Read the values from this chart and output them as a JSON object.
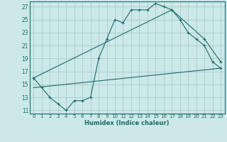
{
  "xlabel": "Humidex (Indice chaleur)",
  "background_color": "#cce8e8",
  "grid_color": "#aacccc",
  "line_color": "#1a6b6b",
  "xlim": [
    -0.5,
    23.5
  ],
  "ylim": [
    10.5,
    27.8
  ],
  "xticks": [
    0,
    1,
    2,
    3,
    4,
    5,
    6,
    7,
    8,
    9,
    10,
    11,
    12,
    13,
    14,
    15,
    16,
    17,
    18,
    19,
    20,
    21,
    22,
    23
  ],
  "yticks": [
    11,
    13,
    15,
    17,
    19,
    21,
    23,
    25,
    27
  ],
  "series": [
    [
      0,
      16
    ],
    [
      1,
      14.5
    ],
    [
      2,
      13
    ],
    [
      3,
      12
    ],
    [
      4,
      11
    ],
    [
      5,
      12.5
    ],
    [
      6,
      12.5
    ],
    [
      7,
      13
    ],
    [
      8,
      19
    ],
    [
      9,
      22
    ],
    [
      10,
      25
    ],
    [
      11,
      24.5
    ],
    [
      12,
      26.5
    ],
    [
      13,
      26.5
    ],
    [
      14,
      26.5
    ],
    [
      15,
      27.5
    ],
    [
      16,
      27
    ],
    [
      17,
      26.5
    ],
    [
      18,
      25
    ],
    [
      19,
      23
    ],
    [
      20,
      22
    ],
    [
      21,
      21
    ],
    [
      22,
      18.5
    ],
    [
      23,
      17.5
    ]
  ],
  "line2": [
    [
      0,
      16
    ],
    [
      17,
      26.5
    ],
    [
      21,
      22
    ],
    [
      23,
      18.5
    ]
  ],
  "line3": [
    [
      0,
      14.5
    ],
    [
      23,
      17.5
    ]
  ]
}
